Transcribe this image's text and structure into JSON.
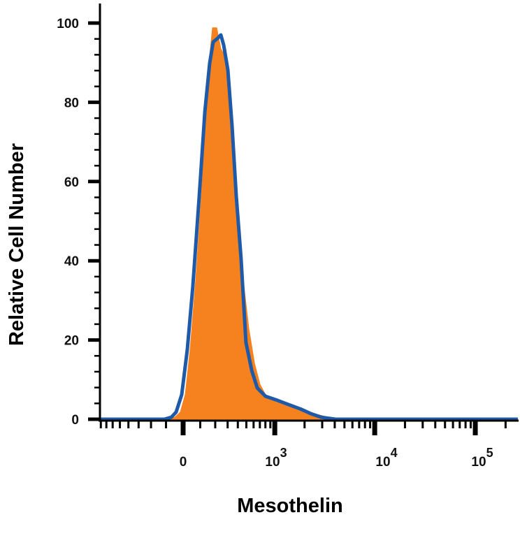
{
  "chart_data": {
    "type": "area",
    "title": "",
    "xlabel": "Mesothelin",
    "ylabel": "Relative Cell Number",
    "x_scale": "biexponential",
    "xlim": [
      -820,
      265000
    ],
    "ylim": [
      0,
      100
    ],
    "x_ticks": [
      {
        "value": 0,
        "label": "0",
        "sup": ""
      },
      {
        "value": 1000,
        "label": "10",
        "sup": "3"
      },
      {
        "value": 10000,
        "label": "10",
        "sup": "4"
      },
      {
        "value": 100000,
        "label": "10",
        "sup": "5"
      }
    ],
    "y_ticks": [
      0,
      20,
      40,
      60,
      80,
      100
    ],
    "grid": false,
    "legend": "none",
    "series": [
      {
        "style": "filled",
        "color": "#F5821F",
        "x": [
          -820,
          -89,
          -48,
          -16,
          12,
          40,
          73,
          107,
          138,
          161,
          180,
          211,
          243,
          277,
          302,
          341,
          398,
          461,
          533,
          615,
          702,
          802,
          1031,
          1317,
          1823,
          2515,
          3461,
          4781,
          265000
        ],
        "y": [
          0,
          0,
          0.5,
          1.8,
          6.2,
          17.6,
          35.3,
          56.4,
          77.6,
          91.7,
          98.8,
          98.8,
          93.5,
          91.7,
          89.9,
          74.1,
          52.9,
          35.3,
          22.9,
          14.1,
          8.8,
          6.2,
          4.9,
          3.9,
          2.6,
          1.4,
          0.5,
          0,
          0
        ]
      },
      {
        "style": "line",
        "color": "#1F5AA8",
        "x": [
          -820,
          -111,
          -68,
          -40,
          -8,
          24,
          56,
          94,
          129,
          161,
          185,
          216,
          243,
          266,
          302,
          341,
          383,
          436,
          495,
          573,
          657,
          802,
          1031,
          1317,
          1823,
          2321,
          2953,
          4074,
          265000
        ],
        "y": [
          0,
          0,
          0.5,
          1.8,
          6.2,
          17.6,
          33.5,
          56.4,
          77.6,
          89.9,
          95.2,
          96.1,
          97,
          94.4,
          88.2,
          74.1,
          56.4,
          40.6,
          19.4,
          12.3,
          7.9,
          5.8,
          4.9,
          3.9,
          2.6,
          1.4,
          0.5,
          0,
          0
        ]
      }
    ]
  }
}
